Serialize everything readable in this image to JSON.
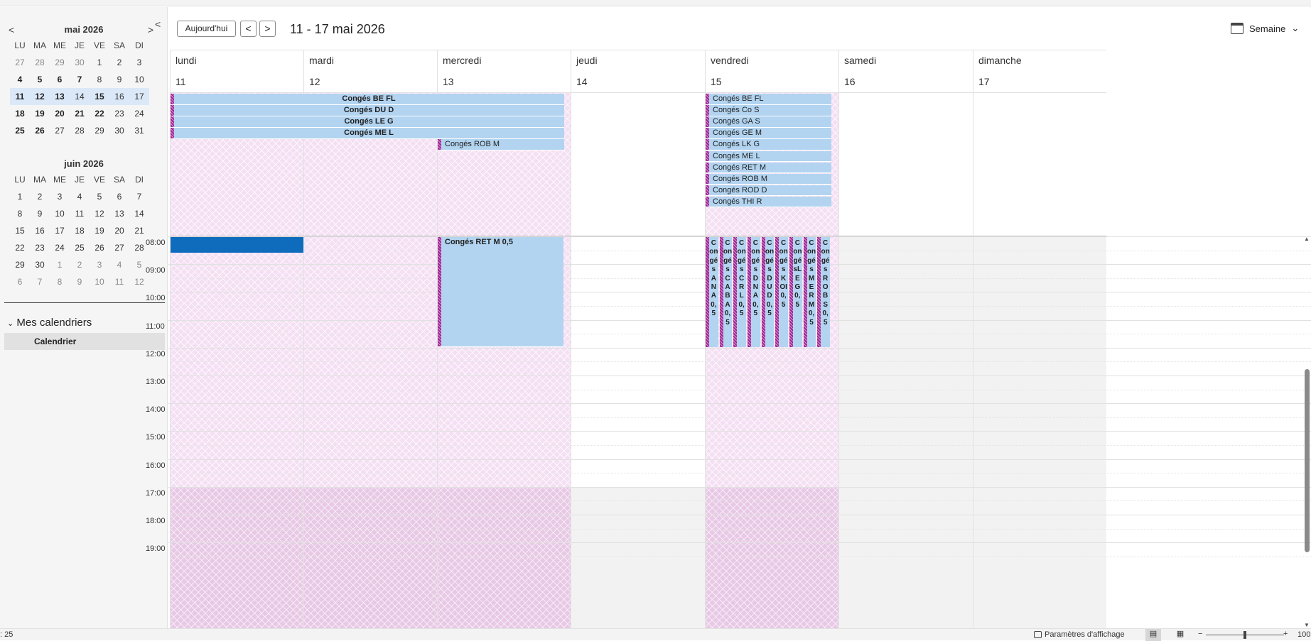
{
  "status": {
    "count": ": 25",
    "params_label": "Paramètres d'affichage",
    "zoom": "100",
    "zoom_fraction": 0.5
  },
  "nav": {
    "today": "Aujourd'hui",
    "prev": "<",
    "next": ">",
    "range": "11 - 17 mai 2026",
    "view": "Semaine",
    "collapse": "<"
  },
  "dow": [
    "LU",
    "MA",
    "ME",
    "JE",
    "VE",
    "SA",
    "DI"
  ],
  "months": [
    {
      "title": "mai 2026",
      "weeks": [
        [
          {
            "d": "27",
            "s": "dim"
          },
          {
            "d": "28",
            "s": "dim"
          },
          {
            "d": "29",
            "s": "dim"
          },
          {
            "d": "30",
            "s": "dim"
          },
          {
            "d": "1",
            "s": ""
          },
          {
            "d": "2",
            "s": ""
          },
          {
            "d": "3",
            "s": ""
          }
        ],
        [
          {
            "d": "4",
            "s": "bold"
          },
          {
            "d": "5",
            "s": "bold"
          },
          {
            "d": "6",
            "s": "bold"
          },
          {
            "d": "7",
            "s": "bold"
          },
          {
            "d": "8",
            "s": ""
          },
          {
            "d": "9",
            "s": ""
          },
          {
            "d": "10",
            "s": ""
          }
        ],
        [
          {
            "d": "11",
            "s": "bold wk"
          },
          {
            "d": "12",
            "s": "bold wk"
          },
          {
            "d": "13",
            "s": "bold wk"
          },
          {
            "d": "14",
            "s": "wk"
          },
          {
            "d": "15",
            "s": "bold wk"
          },
          {
            "d": "16",
            "s": "wk"
          },
          {
            "d": "17",
            "s": "wk"
          }
        ],
        [
          {
            "d": "18",
            "s": "bold"
          },
          {
            "d": "19",
            "s": "bold"
          },
          {
            "d": "20",
            "s": "bold"
          },
          {
            "d": "21",
            "s": "bold"
          },
          {
            "d": "22",
            "s": "bold"
          },
          {
            "d": "23",
            "s": ""
          },
          {
            "d": "24",
            "s": ""
          }
        ],
        [
          {
            "d": "25",
            "s": "bold"
          },
          {
            "d": "26",
            "s": "bold"
          },
          {
            "d": "27",
            "s": ""
          },
          {
            "d": "28",
            "s": ""
          },
          {
            "d": "29",
            "s": ""
          },
          {
            "d": "30",
            "s": ""
          },
          {
            "d": "31",
            "s": ""
          }
        ]
      ]
    },
    {
      "title": "juin 2026",
      "weeks": [
        [
          {
            "d": "1",
            "s": ""
          },
          {
            "d": "2",
            "s": ""
          },
          {
            "d": "3",
            "s": ""
          },
          {
            "d": "4",
            "s": ""
          },
          {
            "d": "5",
            "s": ""
          },
          {
            "d": "6",
            "s": ""
          },
          {
            "d": "7",
            "s": ""
          }
        ],
        [
          {
            "d": "8",
            "s": ""
          },
          {
            "d": "9",
            "s": ""
          },
          {
            "d": "10",
            "s": ""
          },
          {
            "d": "11",
            "s": ""
          },
          {
            "d": "12",
            "s": ""
          },
          {
            "d": "13",
            "s": ""
          },
          {
            "d": "14",
            "s": ""
          }
        ],
        [
          {
            "d": "15",
            "s": ""
          },
          {
            "d": "16",
            "s": ""
          },
          {
            "d": "17",
            "s": ""
          },
          {
            "d": "18",
            "s": ""
          },
          {
            "d": "19",
            "s": ""
          },
          {
            "d": "20",
            "s": ""
          },
          {
            "d": "21",
            "s": ""
          }
        ],
        [
          {
            "d": "22",
            "s": ""
          },
          {
            "d": "23",
            "s": ""
          },
          {
            "d": "24",
            "s": ""
          },
          {
            "d": "25",
            "s": ""
          },
          {
            "d": "26",
            "s": ""
          },
          {
            "d": "27",
            "s": ""
          },
          {
            "d": "28",
            "s": ""
          }
        ],
        [
          {
            "d": "29",
            "s": ""
          },
          {
            "d": "30",
            "s": ""
          },
          {
            "d": "1",
            "s": "dim"
          },
          {
            "d": "2",
            "s": "dim"
          },
          {
            "d": "3",
            "s": "dim"
          },
          {
            "d": "4",
            "s": "dim"
          },
          {
            "d": "5",
            "s": "dim"
          }
        ],
        [
          {
            "d": "6",
            "s": "dim"
          },
          {
            "d": "7",
            "s": "dim"
          },
          {
            "d": "8",
            "s": "dim"
          },
          {
            "d": "9",
            "s": "dim"
          },
          {
            "d": "10",
            "s": "dim"
          },
          {
            "d": "11",
            "s": "dim"
          },
          {
            "d": "12",
            "s": "dim"
          }
        ]
      ]
    }
  ],
  "my_calendars": {
    "title": "Mes calendriers",
    "items": [
      "Calendrier"
    ]
  },
  "days": [
    {
      "name": "lundi",
      "num": "11",
      "allday_bg": "hatch",
      "timed_bg": "hatch"
    },
    {
      "name": "mardi",
      "num": "12",
      "allday_bg": "hatch",
      "timed_bg": "hatch"
    },
    {
      "name": "mercredi",
      "num": "13",
      "allday_bg": "hatch",
      "timed_bg": "hatch"
    },
    {
      "name": "jeudi",
      "num": "14",
      "allday_bg": "white",
      "timed_bg": "white"
    },
    {
      "name": "vendredi",
      "num": "15",
      "allday_bg": "hatch",
      "timed_bg": "hatch"
    },
    {
      "name": "samedi",
      "num": "16",
      "allday_bg": "white",
      "timed_bg": "gray"
    },
    {
      "name": "dimanche",
      "num": "17",
      "allday_bg": "white",
      "timed_bg": "gray"
    }
  ],
  "times": [
    "08:00",
    "09:00",
    "10:00",
    "11:00",
    "12:00",
    "13:00",
    "14:00",
    "15:00",
    "16:00",
    "17:00",
    "18:00",
    "19:00"
  ],
  "allday_events": [
    {
      "title": "Congés BE FL",
      "start_day": 0,
      "span": 3,
      "row": 0,
      "centered": true
    },
    {
      "title": "Congés DU D",
      "start_day": 0,
      "span": 3,
      "row": 1,
      "centered": true
    },
    {
      "title": "Congés LE G",
      "start_day": 0,
      "span": 3,
      "row": 2,
      "centered": true
    },
    {
      "title": "Congés ME L",
      "start_day": 0,
      "span": 3,
      "row": 3,
      "centered": true
    },
    {
      "title": "Congés ROB M",
      "start_day": 2,
      "span": 1,
      "row": 4,
      "centered": false
    },
    {
      "title": "Congés BE FL",
      "start_day": 4,
      "span": 1,
      "row": 0,
      "centered": false
    },
    {
      "title": "Congés Co S",
      "start_day": 4,
      "span": 1,
      "row": 1,
      "centered": false
    },
    {
      "title": "Congés GA S",
      "start_day": 4,
      "span": 1,
      "row": 2,
      "centered": false
    },
    {
      "title": "Congés GE M",
      "start_day": 4,
      "span": 1,
      "row": 3,
      "centered": false
    },
    {
      "title": "Congés LK G",
      "start_day": 4,
      "span": 1,
      "row": 4,
      "centered": false
    },
    {
      "title": "Congés ME L",
      "start_day": 4,
      "span": 1,
      "row": 5,
      "centered": false
    },
    {
      "title": "Congés RET M",
      "start_day": 4,
      "span": 1,
      "row": 6,
      "centered": false
    },
    {
      "title": "Congés ROB M",
      "start_day": 4,
      "span": 1,
      "row": 7,
      "centered": false
    },
    {
      "title": "Congés ROD D",
      "start_day": 4,
      "span": 1,
      "row": 8,
      "centered": false
    },
    {
      "title": "Congés THI R",
      "start_day": 4,
      "span": 1,
      "row": 9,
      "centered": false
    }
  ],
  "timed_events": [
    {
      "title": "Congés RET M 0,5",
      "day": 2,
      "start": "08:00",
      "end": "12:00",
      "lane": 0,
      "lanes": 1
    },
    {
      "title": "Congés A N A 0,5",
      "day": 4,
      "start": "08:00",
      "end": "12:00",
      "lane": 0,
      "lanes": 9
    },
    {
      "title": "Congés C A B A 0,5",
      "day": 4,
      "start": "08:00",
      "end": "12:00",
      "lane": 1,
      "lanes": 9
    },
    {
      "title": "Congés C R L 0,5",
      "day": 4,
      "start": "08:00",
      "end": "12:00",
      "lane": 2,
      "lanes": 9
    },
    {
      "title": "Congés D N A 0,5",
      "day": 4,
      "start": "08:00",
      "end": "12:00",
      "lane": 3,
      "lanes": 9
    },
    {
      "title": "Congés D U D 0,5",
      "day": 4,
      "start": "08:00",
      "end": "12:00",
      "lane": 4,
      "lanes": 9
    },
    {
      "title": "Congés K O I 0,5",
      "day": 4,
      "start": "08:00",
      "end": "12:00",
      "lane": 5,
      "lanes": 9
    },
    {
      "title": "Congés L E G 0,5",
      "day": 4,
      "start": "08:00",
      "end": "12:00",
      "lane": 6,
      "lanes": 9
    },
    {
      "title": "Congés M E R M 0,5",
      "day": 4,
      "start": "08:00",
      "end": "12:00",
      "lane": 7,
      "lanes": 9
    },
    {
      "title": "Congés R O B S 0,5",
      "day": 4,
      "start": "08:00",
      "end": "12:00",
      "lane": 8,
      "lanes": 9
    }
  ],
  "selection": {
    "day": 0,
    "start": "08:00",
    "end": "08:30"
  },
  "work_hours": {
    "start": "08:00",
    "end": "17:00"
  }
}
